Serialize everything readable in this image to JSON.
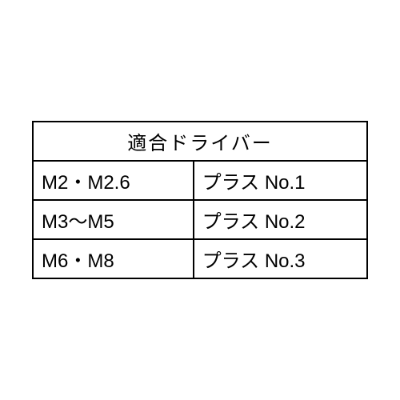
{
  "table": {
    "type": "table",
    "header": "適合ドライバー",
    "columns": [
      "size_range",
      "driver"
    ],
    "rows": [
      {
        "size_range": "M2・M2.6",
        "driver": "プラス No.1"
      },
      {
        "size_range": "M3〜M5",
        "driver": "プラス No.2"
      },
      {
        "size_range": "M6・M8",
        "driver": "プラス No.3"
      }
    ],
    "border_color": "#000000",
    "text_color": "#000000",
    "background_color": "#ffffff",
    "font_size_pt": 18,
    "col_widths_pct": [
      48,
      52
    ]
  }
}
